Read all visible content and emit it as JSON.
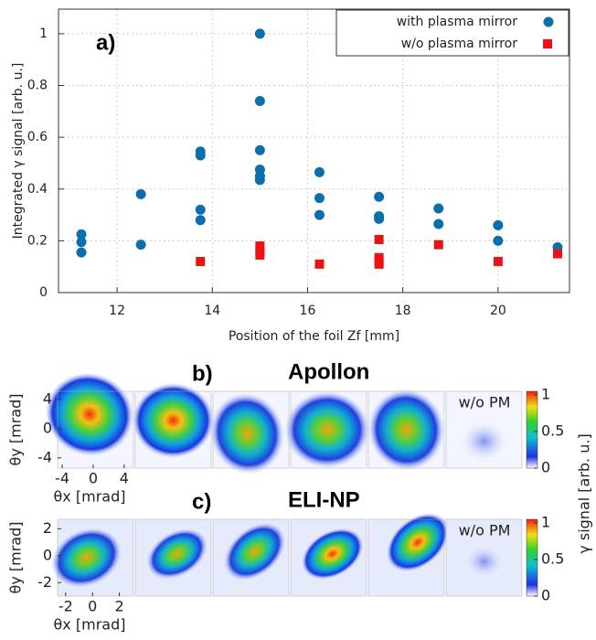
{
  "chart_data": [
    {
      "type": "scatter",
      "label": "a)",
      "xlabel": "Position of the foil Zf [mm]",
      "ylabel": "Integrated γ signal [arb. u.]",
      "xlim": [
        10.77,
        21.5
      ],
      "ylim": [
        0,
        1.095
      ],
      "xticks": [
        12,
        14,
        16,
        18,
        20
      ],
      "yticks": [
        0,
        0.2,
        0.4,
        0.6,
        0.8,
        1
      ],
      "grid": true,
      "legend": "top-right",
      "series": [
        {
          "name": "with plasma mirror",
          "color": "#0b6fae",
          "marker": "circle",
          "x": [
            11.25,
            11.25,
            11.25,
            12.5,
            12.5,
            13.75,
            13.75,
            13.75,
            13.75,
            15,
            15,
            15,
            15,
            15,
            15,
            16.25,
            16.25,
            16.25,
            17.5,
            17.5,
            17.5,
            18.75,
            18.75,
            20,
            20,
            21.25
          ],
          "values": [
            0.225,
            0.195,
            0.155,
            0.38,
            0.185,
            0.545,
            0.53,
            0.32,
            0.28,
            1.0,
            0.74,
            0.55,
            0.475,
            0.45,
            0.435,
            0.465,
            0.365,
            0.3,
            0.37,
            0.295,
            0.285,
            0.325,
            0.265,
            0.26,
            0.2,
            0.175
          ]
        },
        {
          "name": "w/o plasma mirror",
          "color": "#ee1111",
          "marker": "square",
          "x": [
            13.75,
            15,
            15,
            15,
            16.25,
            17.5,
            17.5,
            17.5,
            17.5,
            18.75,
            20,
            21.25
          ],
          "values": [
            0.12,
            0.18,
            0.16,
            0.145,
            0.11,
            0.205,
            0.135,
            0.12,
            0.11,
            0.185,
            0.12,
            0.15
          ]
        }
      ]
    },
    {
      "type": "image",
      "label": "b)",
      "title": "Apollon",
      "xlabel": "θx [mrad]",
      "ylabel": "θy [mrad]",
      "annotation": "w/o PM",
      "xlim": [
        -4.6,
        5.2
      ],
      "ylim": [
        -5.4,
        5.1
      ],
      "xticks": [
        -4,
        0,
        4
      ],
      "yticks": [
        -4,
        0,
        4
      ],
      "colorbar": {
        "label": "γ signal [arb. u.]",
        "lim": [
          0,
          1.05
        ],
        "ticks": [
          0,
          0.5,
          1
        ]
      }
    },
    {
      "type": "image",
      "label": "c)",
      "title": "ELI-NP",
      "xlabel": "θx [mrad]",
      "ylabel": "θy [mrad]",
      "annotation": "w/o PM",
      "xlim": [
        -2.6,
        3.05
      ],
      "ylim": [
        -3.0,
        2.7
      ],
      "xticks": [
        -2,
        0,
        2
      ],
      "yticks": [
        -2,
        0,
        2
      ],
      "colorbar": {
        "lim": [
          0,
          1.05
        ],
        "ticks": [
          0,
          0.5,
          1
        ]
      }
    }
  ]
}
